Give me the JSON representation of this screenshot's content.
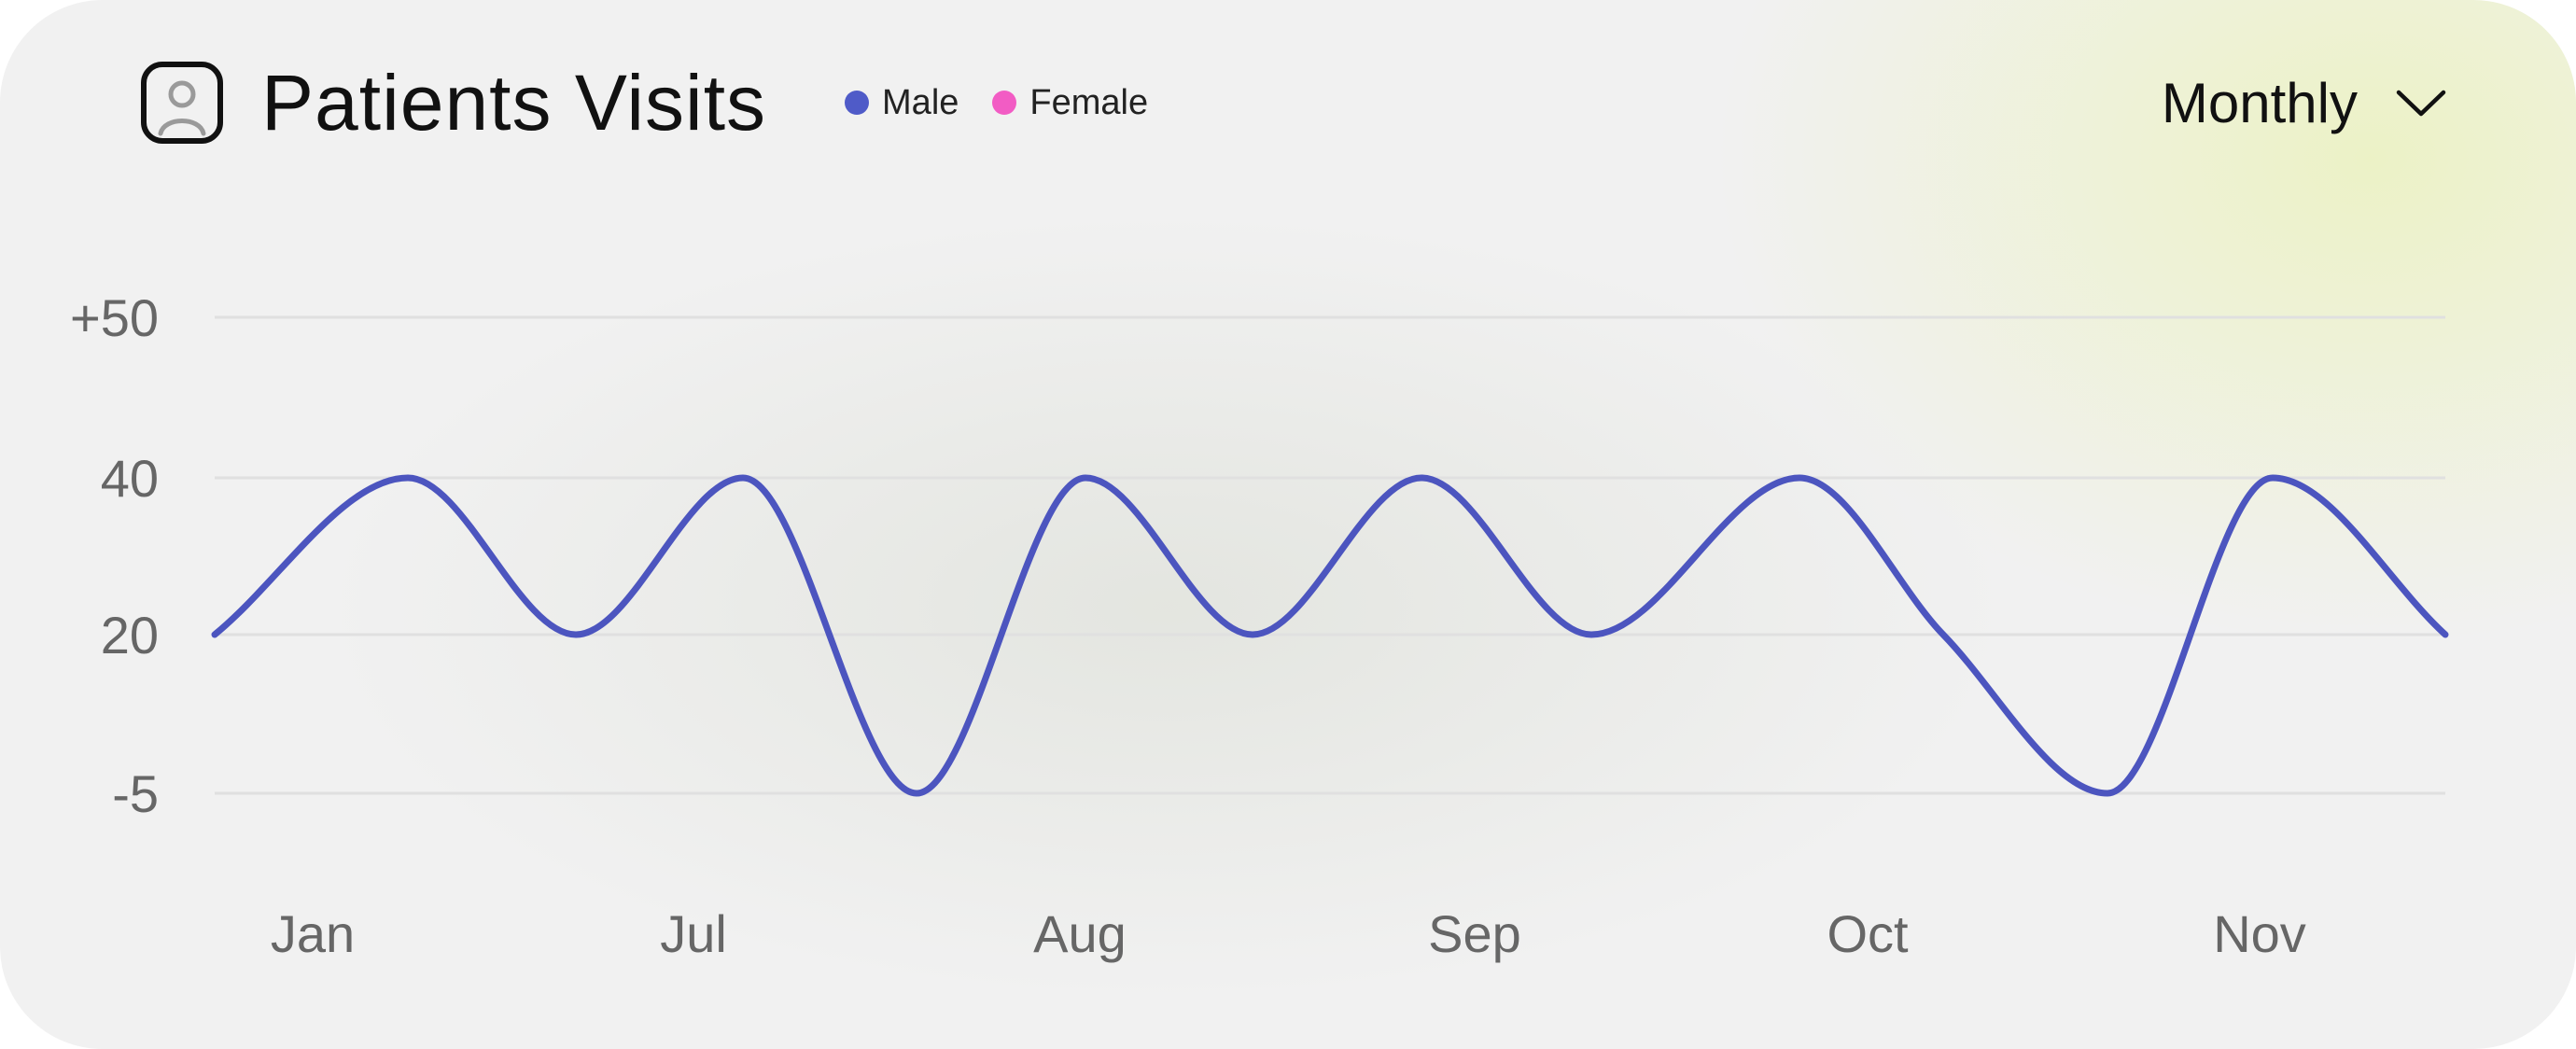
{
  "header": {
    "title": "Patients Visits",
    "icon": "user-avatar-icon",
    "legend": [
      {
        "label": "Male",
        "color": "#4f5bc8"
      },
      {
        "label": "Female",
        "color": "#f25cc4"
      }
    ]
  },
  "period_select": {
    "value": "Monthly",
    "icon": "chevron-down-icon"
  },
  "colors": {
    "line": "#4c55bf",
    "grid": "#e0e0e0",
    "tick": "#666666"
  },
  "chart_data": {
    "type": "line",
    "categories": [
      "Jan",
      "Jul",
      "Aug",
      "Sep",
      "Oct",
      "Nov"
    ],
    "y_ticks": [
      "+50",
      "40",
      "20",
      "-5"
    ],
    "grid": true,
    "legend_position": "top",
    "series": [
      {
        "name": "Male",
        "color": "#4c55bf",
        "points": [
          {
            "x": "Jan",
            "y": 20
          },
          {
            "x": "Jan",
            "y": 40
          },
          {
            "x": "Jul",
            "y": 20
          },
          {
            "x": "Jul",
            "y": 40
          },
          {
            "x": "Aug",
            "y": -5
          },
          {
            "x": "Aug",
            "y": 40
          },
          {
            "x": "Sep",
            "y": 20
          },
          {
            "x": "Sep",
            "y": 40
          },
          {
            "x": "Oct",
            "y": 20
          },
          {
            "x": "Oct",
            "y": 40
          },
          {
            "x": "Oct",
            "y": 20
          },
          {
            "x": "Nov",
            "y": -5
          },
          {
            "x": "Nov",
            "y": 40
          },
          {
            "x": "Nov",
            "y": 20
          }
        ]
      }
    ]
  }
}
